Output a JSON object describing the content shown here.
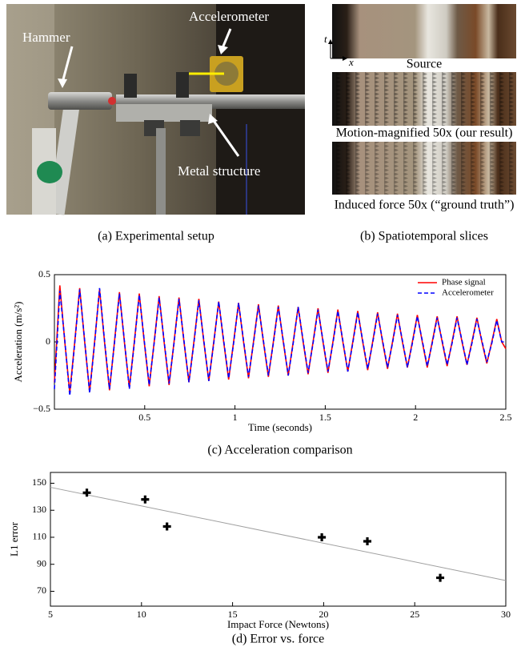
{
  "panel_a": {
    "labels": [
      "Hammer",
      "Accelerometer",
      "Metal structure"
    ],
    "caption": "(a) Experimental setup"
  },
  "panel_b": {
    "axis_t": "t",
    "axis_x": "x",
    "slices": [
      "Source",
      "Motion-magnified 50x (our result)",
      "Induced force 50x (“ground truth”)"
    ],
    "caption": "(b) Spatiotemporal slices"
  },
  "chart_data": [
    {
      "type": "line",
      "caption": "(c) Acceleration comparison",
      "x_label": "Time (seconds)",
      "y_label": "Acceleration (m/s²)",
      "xlim": [
        0,
        2.5
      ],
      "xticks": [
        0.5,
        1,
        1.5,
        2,
        2.5
      ],
      "ylim": [
        -0.5,
        0.5
      ],
      "yticks": [
        {
          "value": -0.5,
          "label": "−0.5"
        },
        0,
        0.5
      ],
      "legend": "upper right",
      "x": [
        0,
        0.03,
        0.0575,
        0.085,
        0.1125,
        0.14,
        0.1675,
        0.195,
        0.2225,
        0.25,
        0.2775,
        0.305,
        0.3325,
        0.36,
        0.3875,
        0.415,
        0.4425,
        0.47,
        0.4975,
        0.525,
        0.5525,
        0.58,
        0.6075,
        0.635,
        0.6625,
        0.69,
        0.7175,
        0.745,
        0.7725,
        0.8,
        0.8275,
        0.855,
        0.8825,
        0.91,
        0.9375,
        0.965,
        0.9925,
        1.02,
        1.0475,
        1.075,
        1.1025,
        1.13,
        1.1575,
        1.185,
        1.2125,
        1.24,
        1.2675,
        1.295,
        1.3225,
        1.35,
        1.3775,
        1.405,
        1.4325,
        1.46,
        1.4875,
        1.515,
        1.5425,
        1.57,
        1.5975,
        1.625,
        1.6525,
        1.68,
        1.7075,
        1.735,
        1.7625,
        1.79,
        1.8175,
        1.845,
        1.8725,
        1.9,
        1.9275,
        1.955,
        1.9825,
        2.01,
        2.0375,
        2.065,
        2.0925,
        2.12,
        2.1475,
        2.175,
        2.2025,
        2.23,
        2.2575,
        2.285,
        2.3125,
        2.34,
        2.3675,
        2.395,
        2.4225,
        2.45,
        2.4775,
        2.5
      ],
      "series": [
        {
          "name": "Phase signal",
          "color": "#ff0000",
          "style": "solid",
          "values": [
            -0.3,
            0.42,
            0,
            -0.38,
            0,
            0.4,
            0,
            -0.37,
            0,
            0.39,
            0,
            -0.36,
            0,
            0.37,
            0,
            -0.34,
            0,
            0.36,
            0,
            -0.33,
            0,
            0.34,
            0,
            -0.32,
            0,
            0.33,
            0,
            -0.3,
            0,
            0.32,
            0,
            -0.29,
            0,
            0.3,
            0,
            -0.28,
            0,
            0.29,
            0,
            -0.27,
            0,
            0.28,
            0,
            -0.26,
            0,
            0.27,
            0,
            -0.25,
            0,
            0.26,
            0,
            -0.24,
            0,
            0.25,
            0,
            -0.23,
            0,
            0.24,
            0,
            -0.22,
            0,
            0.23,
            0,
            -0.21,
            0,
            0.22,
            0,
            -0.2,
            0,
            0.21,
            0,
            -0.19,
            0,
            0.2,
            0,
            -0.19,
            0,
            0.19,
            0,
            -0.18,
            0,
            0.19,
            0,
            -0.17,
            0,
            0.18,
            0,
            -0.16,
            0,
            0.17,
            0,
            -0.05
          ]
        },
        {
          "name": "Accelerometer",
          "color": "#0000ff",
          "style": "dashed",
          "values": [
            -0.35,
            0.38,
            0.01,
            -0.4,
            -0.01,
            0.39,
            0.01,
            -0.38,
            -0.01,
            0.4,
            0.01,
            -0.35,
            -0.01,
            0.36,
            0.01,
            -0.35,
            -0.01,
            0.35,
            0.01,
            -0.32,
            -0.01,
            0.33,
            0.01,
            -0.31,
            -0.01,
            0.32,
            0.01,
            -0.3,
            -0.01,
            0.31,
            0.01,
            -0.29,
            -0.01,
            0.3,
            0.01,
            -0.27,
            -0.01,
            0.29,
            0.01,
            -0.26,
            -0.01,
            0.27,
            0.01,
            -0.25,
            -0.01,
            0.26,
            0.01,
            -0.25,
            -0.01,
            0.26,
            0.01,
            -0.23,
            -0.01,
            0.24,
            0.01,
            -0.22,
            -0.01,
            0.23,
            0.01,
            -0.22,
            -0.01,
            0.22,
            0.01,
            -0.2,
            -0.01,
            0.21,
            0.01,
            -0.19,
            -0.01,
            0.2,
            0.01,
            -0.19,
            -0.01,
            0.19,
            0.01,
            -0.18,
            -0.01,
            0.18,
            0.01,
            -0.17,
            -0.01,
            0.18,
            0.01,
            -0.17,
            -0.01,
            0.17,
            0.01,
            -0.15,
            -0.01,
            0.16,
            0,
            0
          ]
        }
      ]
    },
    {
      "type": "scatter",
      "caption": "(d) Error vs. force",
      "x_label": "Impact Force (Newtons)",
      "y_label": "L1 error",
      "xlim": [
        5,
        30
      ],
      "xticks": [
        5,
        10,
        15,
        20,
        25,
        30
      ],
      "ylim": [
        59,
        158
      ],
      "yticks": [
        70,
        90,
        110,
        130,
        150
      ],
      "color": "#000000",
      "x": [
        7,
        10.2,
        11.4,
        19.9,
        22.4,
        26.4
      ],
      "values": [
        143,
        138,
        118,
        110,
        107,
        80
      ],
      "fit": {
        "x": [
          5,
          30
        ],
        "values": [
          147,
          78
        ],
        "color": "#a0a0a0"
      }
    }
  ]
}
